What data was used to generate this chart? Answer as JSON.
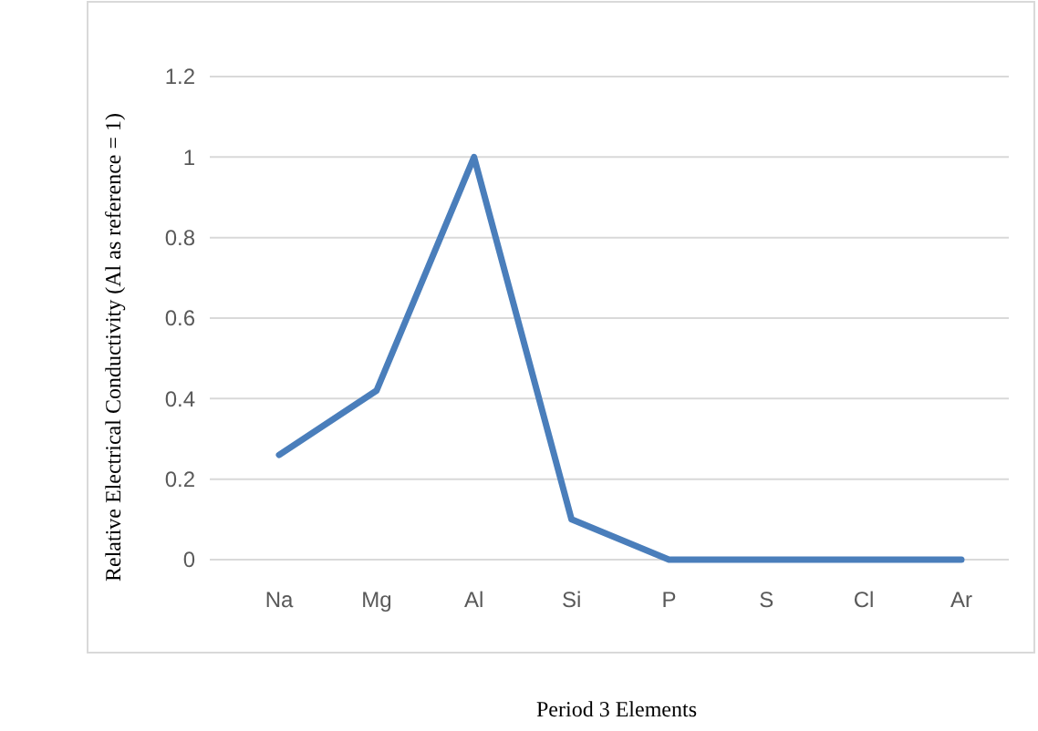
{
  "chart_data": {
    "type": "line",
    "xlabel": "Period 3 Elements",
    "ylabel": "Relative Electrical Conductivity (Al as reference = 1)",
    "categories": [
      "Na",
      "Mg",
      "Al",
      "Si",
      "P",
      "S",
      "Cl",
      "Ar"
    ],
    "series": [
      {
        "color": "#4a7ebb",
        "values": [
          0.26,
          0.42,
          1,
          0.1,
          0,
          0,
          0,
          0
        ]
      }
    ],
    "ylim": [
      0,
      1.2
    ],
    "yticks": [
      0,
      0.2,
      0.4,
      0.6,
      0.8,
      1,
      1.2
    ],
    "grid": "y",
    "marker": "none",
    "line_style": "solid"
  }
}
